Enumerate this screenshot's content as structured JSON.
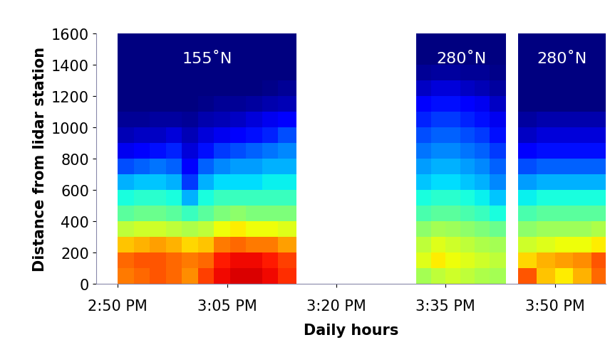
{
  "chart_data": {
    "type": "heatmap",
    "xlabel": "Daily hours",
    "ylabel": "Distance from lidar station",
    "xlim": [
      887,
      957
    ],
    "xticks": [
      {
        "value": 890,
        "label": "2:50 PM"
      },
      {
        "value": 905,
        "label": "3:05 PM"
      },
      {
        "value": 920,
        "label": "3:20 PM"
      },
      {
        "value": 935,
        "label": "3:35 PM"
      },
      {
        "value": 950,
        "label": "3:50 PM"
      }
    ],
    "ylim": [
      0,
      1600
    ],
    "yticks": [
      0,
      200,
      400,
      600,
      800,
      1000,
      1200,
      1400,
      1600
    ],
    "color_range": [
      0,
      1
    ],
    "y_edges": [
      0,
      100,
      200,
      300,
      400,
      500,
      600,
      700,
      800,
      900,
      1000,
      1100,
      1200,
      1300,
      1400,
      1500,
      1600
    ],
    "panels": [
      {
        "label": "155˚N",
        "x_edges": [
          890,
          892.2,
          894.4,
          896.6,
          898.8,
          901,
          903.2,
          905.4,
          907.6,
          909.8,
          912,
          914.5
        ],
        "cells": [
          [
            0.78,
            0.8,
            0.82,
            0.8,
            0.76,
            0.84,
            0.9,
            0.92,
            0.92,
            0.9,
            0.86
          ],
          [
            0.8,
            0.82,
            0.82,
            0.8,
            0.78,
            0.8,
            0.88,
            0.9,
            0.9,
            0.88,
            0.84
          ],
          [
            0.7,
            0.72,
            0.74,
            0.72,
            0.68,
            0.7,
            0.78,
            0.8,
            0.78,
            0.78,
            0.74
          ],
          [
            0.58,
            0.6,
            0.6,
            0.58,
            0.56,
            0.58,
            0.64,
            0.66,
            0.64,
            0.64,
            0.62
          ],
          [
            0.46,
            0.48,
            0.48,
            0.46,
            0.42,
            0.46,
            0.5,
            0.52,
            0.5,
            0.5,
            0.5
          ],
          [
            0.38,
            0.4,
            0.4,
            0.38,
            0.3,
            0.38,
            0.42,
            0.42,
            0.42,
            0.42,
            0.42
          ],
          [
            0.3,
            0.32,
            0.32,
            0.3,
            0.18,
            0.3,
            0.34,
            0.34,
            0.34,
            0.36,
            0.36
          ],
          [
            0.2,
            0.22,
            0.24,
            0.22,
            0.12,
            0.22,
            0.26,
            0.28,
            0.28,
            0.3,
            0.3
          ],
          [
            0.1,
            0.12,
            0.14,
            0.16,
            0.08,
            0.14,
            0.18,
            0.2,
            0.22,
            0.24,
            0.26
          ],
          [
            0.05,
            0.06,
            0.06,
            0.08,
            0.05,
            0.08,
            0.1,
            0.12,
            0.14,
            0.16,
            0.2
          ],
          [
            0.02,
            0.02,
            0.03,
            0.03,
            0.02,
            0.04,
            0.05,
            0.06,
            0.08,
            0.1,
            0.12
          ],
          [
            0,
            0,
            0,
            0,
            0,
            0.01,
            0.02,
            0.02,
            0.03,
            0.04,
            0.05
          ],
          [
            0,
            0,
            0,
            0,
            0,
            0,
            0,
            0,
            0,
            0.01,
            0.02
          ],
          [
            0,
            0,
            0,
            0,
            0,
            0,
            0,
            0,
            0,
            0,
            0
          ],
          [
            0,
            0,
            0,
            0,
            0,
            0,
            0,
            0,
            0,
            0,
            0
          ],
          [
            0,
            0,
            0,
            0,
            0,
            0,
            0,
            0,
            0,
            0,
            0
          ]
        ]
      },
      {
        "label": "280˚N",
        "x_edges": [
          931,
          933,
          935,
          937,
          939,
          941,
          943.3
        ],
        "cells": [
          [
            0.55,
            0.58,
            0.6,
            0.58,
            0.56,
            0.55
          ],
          [
            0.62,
            0.66,
            0.64,
            0.62,
            0.6,
            0.58
          ],
          [
            0.58,
            0.62,
            0.6,
            0.58,
            0.56,
            0.55
          ],
          [
            0.52,
            0.55,
            0.54,
            0.52,
            0.5,
            0.48
          ],
          [
            0.44,
            0.46,
            0.46,
            0.44,
            0.42,
            0.38
          ],
          [
            0.38,
            0.4,
            0.4,
            0.38,
            0.36,
            0.32
          ],
          [
            0.32,
            0.34,
            0.34,
            0.32,
            0.3,
            0.26
          ],
          [
            0.28,
            0.3,
            0.3,
            0.28,
            0.26,
            0.22
          ],
          [
            0.24,
            0.26,
            0.26,
            0.24,
            0.22,
            0.18
          ],
          [
            0.2,
            0.22,
            0.22,
            0.2,
            0.18,
            0.14
          ],
          [
            0.16,
            0.18,
            0.18,
            0.16,
            0.14,
            0.1
          ],
          [
            0.12,
            0.14,
            0.14,
            0.12,
            0.1,
            0.06
          ],
          [
            0.06,
            0.08,
            0.08,
            0.06,
            0.05,
            0.03
          ],
          [
            0.02,
            0.03,
            0.03,
            0.02,
            0.02,
            0.01
          ],
          [
            0,
            0,
            0,
            0,
            0,
            0
          ],
          [
            0,
            0,
            0,
            0,
            0,
            0
          ]
        ]
      },
      {
        "label": "280˚N",
        "x_edges": [
          945,
          947.5,
          950,
          952.5,
          955,
          957.5
        ],
        "cells": [
          [
            0.82,
            0.7,
            0.66,
            0.72,
            0.8
          ],
          [
            0.68,
            0.72,
            0.74,
            0.76,
            0.82
          ],
          [
            0.6,
            0.62,
            0.64,
            0.64,
            0.66
          ],
          [
            0.52,
            0.54,
            0.54,
            0.54,
            0.56
          ],
          [
            0.44,
            0.46,
            0.46,
            0.46,
            0.46
          ],
          [
            0.36,
            0.38,
            0.38,
            0.38,
            0.38
          ],
          [
            0.28,
            0.3,
            0.3,
            0.3,
            0.3
          ],
          [
            0.2,
            0.22,
            0.22,
            0.22,
            0.22
          ],
          [
            0.12,
            0.14,
            0.14,
            0.14,
            0.14
          ],
          [
            0.06,
            0.08,
            0.08,
            0.08,
            0.08
          ],
          [
            0.03,
            0.04,
            0.04,
            0.04,
            0.04
          ],
          [
            0,
            0,
            0,
            0,
            0
          ],
          [
            0,
            0,
            0,
            0,
            0
          ],
          [
            0,
            0,
            0,
            0,
            0
          ],
          [
            0,
            0,
            0,
            0,
            0
          ],
          [
            0,
            0,
            0,
            0,
            0
          ]
        ]
      }
    ]
  }
}
